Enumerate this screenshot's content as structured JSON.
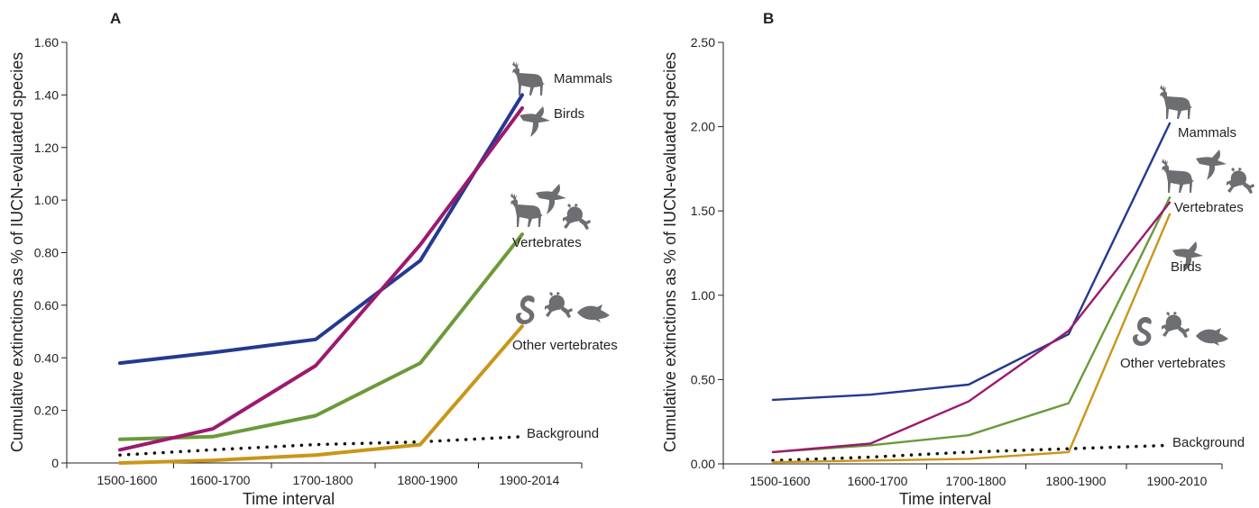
{
  "chart_data": [
    {
      "panel": "A",
      "type": "line",
      "xlabel": "Time interval",
      "ylabel": "Cumulative extinctions as % of IUCN-evaluated species",
      "categories": [
        "1500-1600",
        "1600-1700",
        "1700-1800",
        "1800-1900",
        "1900-2014"
      ],
      "ylim": [
        0,
        1.6
      ],
      "yticks": [
        "0",
        "0.20",
        "0.40",
        "0.60",
        "0.80",
        "1.00",
        "1.20",
        "1.40",
        "1.60"
      ],
      "series": [
        {
          "name": "Mammals",
          "color": "#233a8f",
          "style": "solid",
          "values": [
            0.38,
            0.42,
            0.47,
            0.77,
            1.4
          ]
        },
        {
          "name": "Birds",
          "color": "#9c1a6e",
          "style": "solid",
          "values": [
            0.05,
            0.13,
            0.37,
            0.83,
            1.35
          ]
        },
        {
          "name": "Vertebrates",
          "color": "#6a9a3a",
          "style": "solid",
          "values": [
            0.09,
            0.1,
            0.18,
            0.38,
            0.87
          ]
        },
        {
          "name": "Other vertebrates",
          "color": "#c9961a",
          "style": "solid",
          "values": [
            0.0,
            0.01,
            0.03,
            0.07,
            0.52
          ]
        },
        {
          "name": "Background",
          "color": "#111111",
          "style": "dotted",
          "values": [
            0.03,
            0.05,
            0.07,
            0.08,
            0.1
          ]
        }
      ]
    },
    {
      "panel": "B",
      "type": "line",
      "xlabel": "Time interval",
      "ylabel": "Cumulative extinctions as % of IUCN-evaluated species",
      "categories": [
        "1500-1600",
        "1600-1700",
        "1700-1800",
        "1800-1900",
        "1900-2010"
      ],
      "ylim": [
        0,
        2.5
      ],
      "yticks": [
        "0.00",
        "0.50",
        "1.00",
        "1.50",
        "2.00",
        "2.50"
      ],
      "series": [
        {
          "name": "Mammals",
          "color": "#233a8f",
          "style": "solid",
          "values": [
            0.38,
            0.41,
            0.47,
            0.77,
            2.02
          ]
        },
        {
          "name": "Birds",
          "color": "#9c1a6e",
          "style": "solid",
          "values": [
            0.07,
            0.12,
            0.37,
            0.79,
            1.55
          ]
        },
        {
          "name": "Vertebrates",
          "color": "#6a9a3a",
          "style": "solid",
          "values": [
            0.07,
            0.11,
            0.17,
            0.36,
            1.58
          ]
        },
        {
          "name": "Other vertebrates",
          "color": "#c9961a",
          "style": "solid",
          "values": [
            0.01,
            0.02,
            0.03,
            0.07,
            1.48
          ]
        },
        {
          "name": "Background",
          "color": "#111111",
          "style": "dotted",
          "values": [
            0.02,
            0.04,
            0.07,
            0.09,
            0.11
          ]
        }
      ]
    }
  ]
}
